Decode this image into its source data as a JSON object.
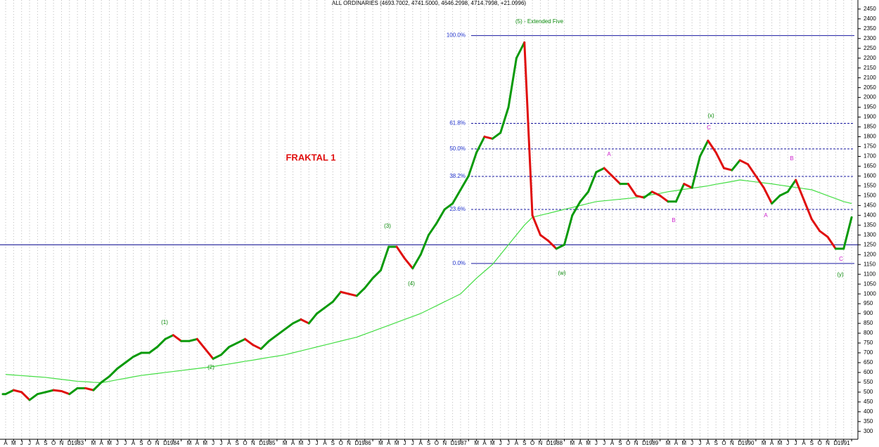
{
  "chart_data": {
    "type": "line",
    "title": "ALL ORDINARIES (4693.7002, 4741.5000, 4646.2998, 4714.7998, +21.0996)",
    "categories": [
      "A",
      "M",
      "J",
      "J",
      "A",
      "S",
      "O",
      "N",
      "D",
      "1983",
      null,
      "M",
      "A",
      "M",
      "J",
      "J",
      "A",
      "S",
      "O",
      "N",
      "D",
      "1984",
      null,
      "M",
      "A",
      "M",
      "J",
      "J",
      "A",
      "S",
      "O",
      "N",
      "D",
      "1985",
      null,
      "M",
      "A",
      "M",
      "J",
      "J",
      "A",
      "S",
      "O",
      "N",
      "D",
      "1986",
      null,
      "M",
      "A",
      "M",
      "J",
      "J",
      "A",
      "S",
      "O",
      "N",
      "D",
      "1987",
      null,
      "M",
      "A",
      "M",
      "J",
      "J",
      "A",
      "S",
      "O",
      "N",
      "D",
      "1988",
      null,
      "M",
      "A",
      "M",
      "J",
      "J",
      "A",
      "S",
      "O",
      "N",
      "D",
      "1989",
      null,
      "M",
      "A",
      "M",
      "J",
      "J",
      "A",
      "S",
      "O",
      "N",
      "D",
      "1990",
      null,
      "M",
      "A",
      "M",
      "J",
      "J",
      "A",
      "S",
      "O",
      "N",
      "D",
      "1991",
      null
    ],
    "series": [
      {
        "name": "price",
        "up_color": "#0a9a0a",
        "down_color": "#e01010",
        "values": [
          490,
          510,
          500,
          460,
          490,
          500,
          510,
          505,
          490,
          520,
          520,
          510,
          550,
          580,
          620,
          650,
          680,
          700,
          700,
          730,
          770,
          790,
          760,
          760,
          770,
          720,
          670,
          690,
          730,
          750,
          770,
          740,
          720,
          760,
          790,
          820,
          850,
          870,
          850,
          900,
          930,
          960,
          1010,
          1000,
          990,
          1030,
          1080,
          1120,
          1240,
          1240,
          1180,
          1130,
          1200,
          1300,
          1360,
          1430,
          1460,
          1530,
          1600,
          1720,
          1800,
          1790,
          1820,
          1950,
          2200,
          2280,
          1400,
          1300,
          1270,
          1230,
          1250,
          1400,
          1470,
          1520,
          1620,
          1640,
          1600,
          1560,
          1560,
          1500,
          1490,
          1520,
          1500,
          1470,
          1470,
          1560,
          1540,
          1700,
          1780,
          1720,
          1640,
          1630,
          1680,
          1660,
          1600,
          1540,
          1460,
          1500,
          1520,
          1580,
          1480,
          1380,
          1320,
          1290,
          1230,
          1230,
          1390
        ]
      },
      {
        "name": "moving-average",
        "color": "#44dd44",
        "values": [
          590,
          587,
          584,
          581,
          578,
          575,
          570,
          565,
          560,
          555,
          553,
          550,
          548,
          555,
          563,
          570,
          578,
          585,
          590,
          595,
          600,
          605,
          610,
          615,
          620,
          625,
          630,
          637,
          643,
          650,
          657,
          663,
          670,
          677,
          683,
          690,
          700,
          710,
          720,
          730,
          740,
          750,
          760,
          770,
          780,
          795,
          810,
          825,
          840,
          855,
          870,
          885,
          900,
          920,
          940,
          960,
          980,
          1000,
          1040,
          1080,
          1115,
          1150,
          1200,
          1250,
          1300,
          1350,
          1390,
          1400,
          1410,
          1420,
          1430,
          1440,
          1450,
          1460,
          1470,
          1474,
          1478,
          1482,
          1486,
          1490,
          1498,
          1505,
          1512,
          1520,
          1526,
          1532,
          1538,
          1544,
          1550,
          1558,
          1565,
          1572,
          1580,
          1575,
          1570,
          1565,
          1560,
          1554,
          1548,
          1542,
          1536,
          1530,
          1515,
          1500,
          1485,
          1470,
          1460
        ]
      }
    ],
    "levels": [
      {
        "label": "100.0%",
        "value": 2315
      },
      {
        "label": "61.8%",
        "value": 1868
      },
      {
        "label": "50.0%",
        "value": 1738
      },
      {
        "label": "38.2%",
        "value": 1598
      },
      {
        "label": "23.6%",
        "value": 1430
      },
      {
        "label": "0.0%",
        "value": 1155
      }
    ],
    "support_line": 1250,
    "annotations": [
      "(5) - Extended Five",
      "FRAKTAL 1",
      "(1)",
      "(2)",
      "(3)",
      "(4)",
      "(w)",
      "(x)",
      "(y)",
      "A",
      "A",
      "B",
      "B",
      "C",
      "C"
    ],
    "ylim": [
      260,
      2496
    ],
    "yticks": [
      300,
      350,
      400,
      450,
      500,
      550,
      600,
      650,
      700,
      750,
      800,
      850,
      900,
      950,
      1000,
      1050,
      1100,
      1150,
      1200,
      1250,
      1300,
      1350,
      1400,
      1450,
      1500,
      1550,
      1600,
      1650,
      1700,
      1750,
      1800,
      1850,
      1900,
      1950,
      2000,
      2050,
      2100,
      2150,
      2200,
      2250,
      2300,
      2350,
      2400,
      2450
    ],
    "grid": true
  }
}
